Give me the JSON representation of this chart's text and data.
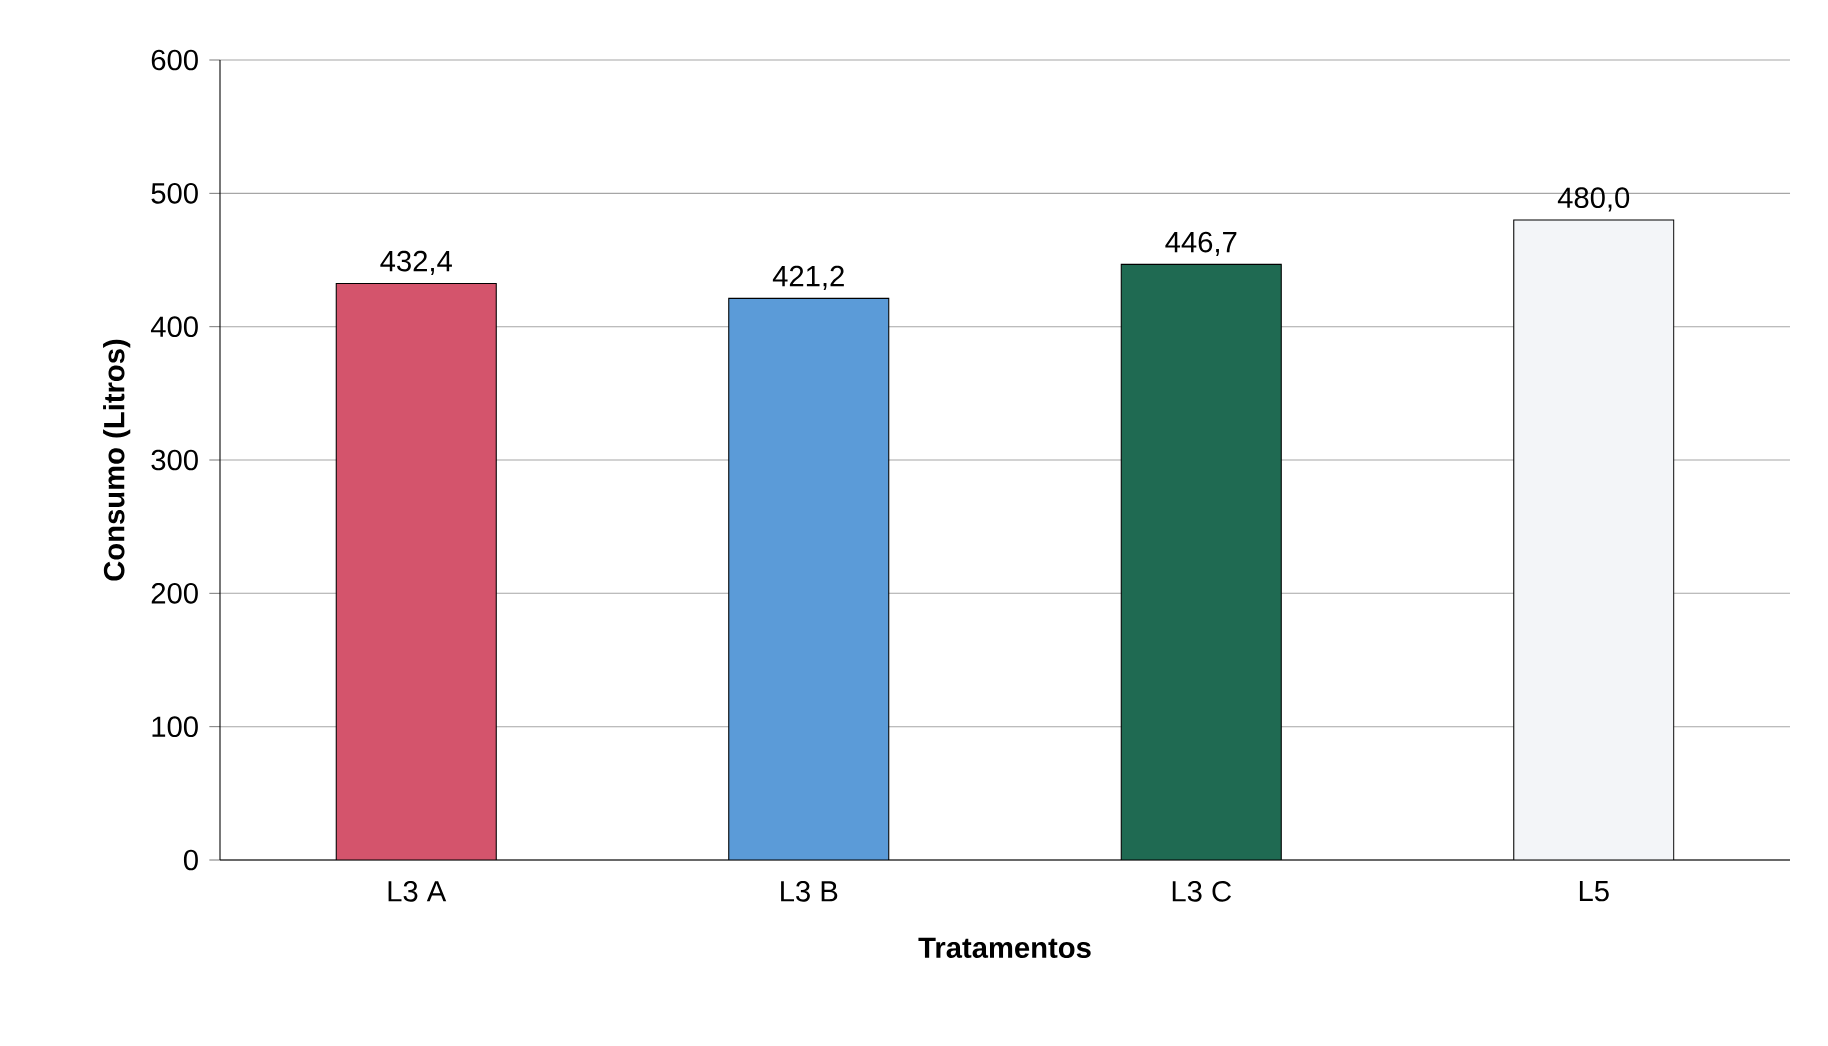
{
  "chart_data": {
    "type": "bar",
    "xlabel": "Tratamentos",
    "ylabel": "Consumo (Litros)",
    "categories": [
      "L3 A",
      "L3 B",
      "L3 C",
      "L5"
    ],
    "values": [
      432.4,
      421.2,
      446.7,
      480.0
    ],
    "value_labels": [
      "432,4",
      "421,2",
      "446,7",
      "480,0"
    ],
    "colors": [
      "#d4546c",
      "#5b9bd8",
      "#1f6a52",
      "#f3f5f8"
    ],
    "ylim": [
      0,
      600
    ],
    "yticks": [
      0,
      100,
      200,
      300,
      400,
      500,
      600
    ],
    "grid": "y"
  }
}
